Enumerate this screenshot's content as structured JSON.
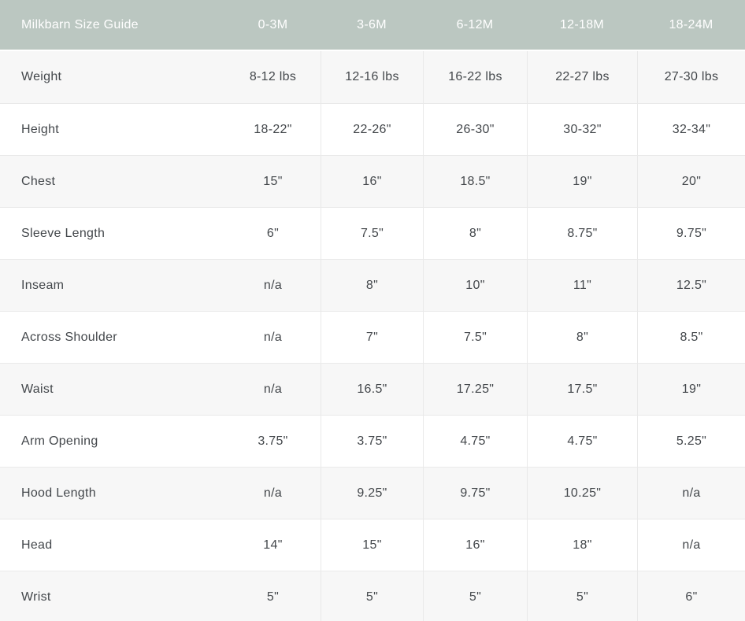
{
  "size_guide": {
    "title": "Milkbarn Size Guide",
    "columns": [
      "0-3M",
      "3-6M",
      "6-12M",
      "12-18M",
      "18-24M"
    ],
    "rows": [
      {
        "label": "Weight",
        "values": [
          "8-12 lbs",
          "12-16 lbs",
          "16-22 lbs",
          "22-27 lbs",
          "27-30 lbs"
        ]
      },
      {
        "label": "Height",
        "values": [
          "18-22\"",
          "22-26\"",
          "26-30\"",
          "30-32\"",
          "32-34\""
        ]
      },
      {
        "label": "Chest",
        "values": [
          "15\"",
          "16\"",
          "18.5\"",
          "19\"",
          "20\""
        ]
      },
      {
        "label": "Sleeve Length",
        "values": [
          "6\"",
          "7.5\"",
          "8\"",
          "8.75\"",
          "9.75\""
        ]
      },
      {
        "label": "Inseam",
        "values": [
          "n/a",
          "8\"",
          "10\"",
          "11\"",
          "12.5\""
        ]
      },
      {
        "label": "Across Shoulder",
        "values": [
          "n/a",
          "7\"",
          "7.5\"",
          "8\"",
          "8.5\""
        ]
      },
      {
        "label": "Waist",
        "values": [
          "n/a",
          "16.5\"",
          "17.25\"",
          "17.5\"",
          "19\""
        ]
      },
      {
        "label": "Arm Opening",
        "values": [
          "3.75\"",
          "3.75\"",
          "4.75\"",
          "4.75\"",
          "5.25\""
        ]
      },
      {
        "label": "Hood Length",
        "values": [
          "n/a",
          "9.25\"",
          "9.75\"",
          "10.25\"",
          "n/a"
        ]
      },
      {
        "label": "Head",
        "values": [
          "14\"",
          "15\"",
          "16\"",
          "18\"",
          "n/a"
        ]
      },
      {
        "label": "Wrist",
        "values": [
          "5\"",
          "5\"",
          "5\"",
          "5\"",
          "6\""
        ]
      }
    ],
    "colors": {
      "header_bg": "#bbc7c1",
      "header_text": "#ffffff",
      "row_stripe_bg": "#f7f7f7",
      "row_bg": "#ffffff",
      "divider": "#e9e9e9",
      "body_text": "#43474b"
    }
  }
}
